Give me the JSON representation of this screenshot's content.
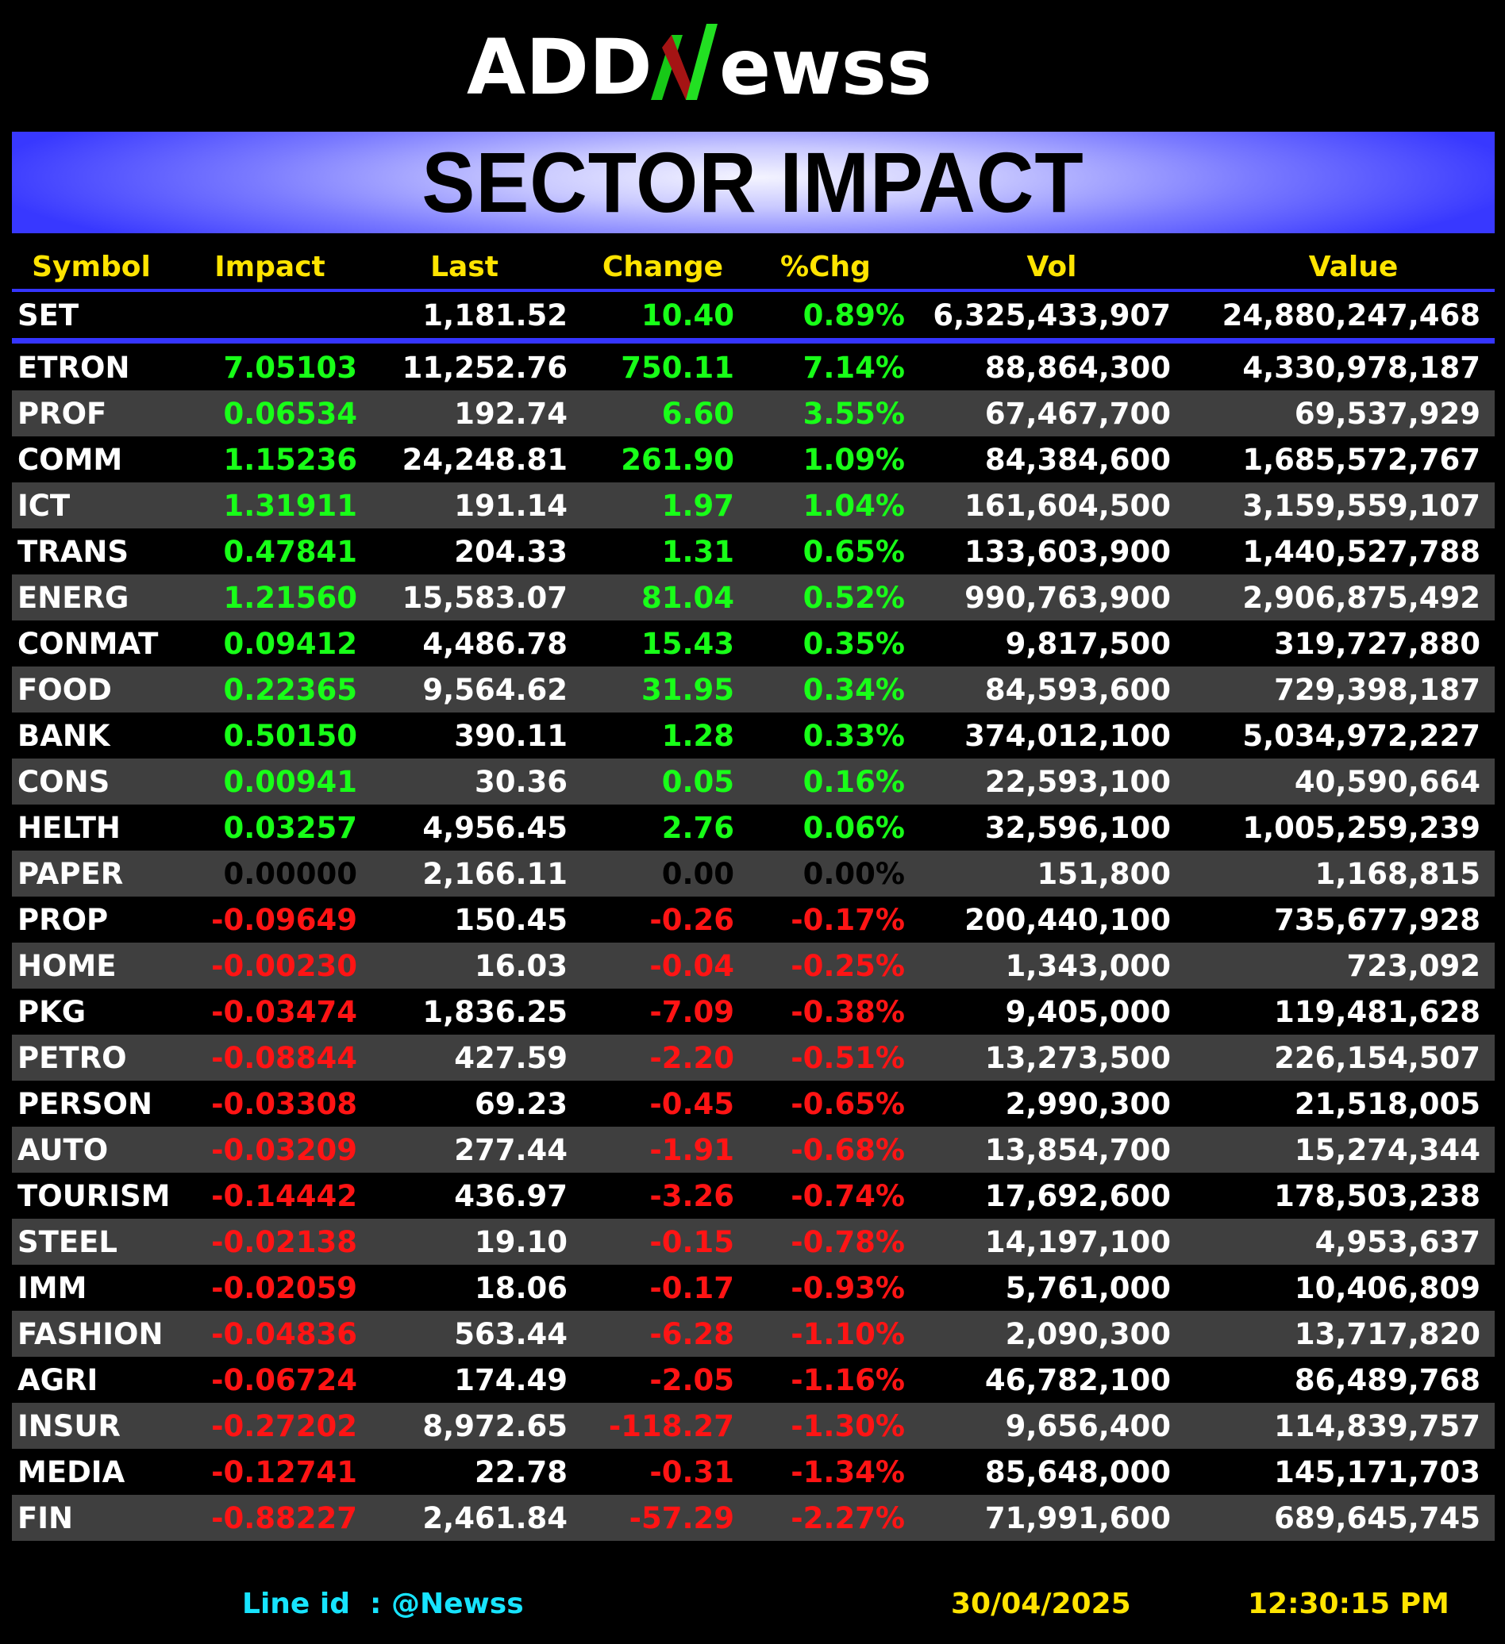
{
  "logo": {
    "text": "ADDNewss",
    "part1": "ADD",
    "part2": "N",
    "part3": "ewss"
  },
  "banner": {
    "title": "SECTOR IMPACT"
  },
  "columns": [
    "Symbol",
    "Impact",
    "Last",
    "Change",
    "%Chg",
    "Vol",
    "Value"
  ],
  "index_row": {
    "symbol": "SET",
    "impact": "",
    "last": "1,181.52",
    "change": "10.40",
    "pct": "0.89%",
    "vol": "6,325,433,907",
    "value": "24,880,247,468"
  },
  "rows": [
    {
      "symbol": "ETRON",
      "impact": "7.05103",
      "last": "11,252.76",
      "change": "750.11",
      "pct": "7.14%",
      "vol": "88,864,300",
      "value": "4,330,978,187"
    },
    {
      "symbol": "PROF",
      "impact": "0.06534",
      "last": "192.74",
      "change": "6.60",
      "pct": "3.55%",
      "vol": "67,467,700",
      "value": "69,537,929"
    },
    {
      "symbol": "COMM",
      "impact": "1.15236",
      "last": "24,248.81",
      "change": "261.90",
      "pct": "1.09%",
      "vol": "84,384,600",
      "value": "1,685,572,767"
    },
    {
      "symbol": "ICT",
      "impact": "1.31911",
      "last": "191.14",
      "change": "1.97",
      "pct": "1.04%",
      "vol": "161,604,500",
      "value": "3,159,559,107"
    },
    {
      "symbol": "TRANS",
      "impact": "0.47841",
      "last": "204.33",
      "change": "1.31",
      "pct": "0.65%",
      "vol": "133,603,900",
      "value": "1,440,527,788"
    },
    {
      "symbol": "ENERG",
      "impact": "1.21560",
      "last": "15,583.07",
      "change": "81.04",
      "pct": "0.52%",
      "vol": "990,763,900",
      "value": "2,906,875,492"
    },
    {
      "symbol": "CONMAT",
      "impact": "0.09412",
      "last": "4,486.78",
      "change": "15.43",
      "pct": "0.35%",
      "vol": "9,817,500",
      "value": "319,727,880"
    },
    {
      "symbol": "FOOD",
      "impact": "0.22365",
      "last": "9,564.62",
      "change": "31.95",
      "pct": "0.34%",
      "vol": "84,593,600",
      "value": "729,398,187"
    },
    {
      "symbol": "BANK",
      "impact": "0.50150",
      "last": "390.11",
      "change": "1.28",
      "pct": "0.33%",
      "vol": "374,012,100",
      "value": "5,034,972,227"
    },
    {
      "symbol": "CONS",
      "impact": "0.00941",
      "last": "30.36",
      "change": "0.05",
      "pct": "0.16%",
      "vol": "22,593,100",
      "value": "40,590,664"
    },
    {
      "symbol": "HELTH",
      "impact": "0.03257",
      "last": "4,956.45",
      "change": "2.76",
      "pct": "0.06%",
      "vol": "32,596,100",
      "value": "1,005,259,239"
    },
    {
      "symbol": "PAPER",
      "impact": "0.00000",
      "last": "2,166.11",
      "change": "0.00",
      "pct": "0.00%",
      "vol": "151,800",
      "value": "1,168,815"
    },
    {
      "symbol": "PROP",
      "impact": "-0.09649",
      "last": "150.45",
      "change": "-0.26",
      "pct": "-0.17%",
      "vol": "200,440,100",
      "value": "735,677,928"
    },
    {
      "symbol": "HOME",
      "impact": "-0.00230",
      "last": "16.03",
      "change": "-0.04",
      "pct": "-0.25%",
      "vol": "1,343,000",
      "value": "723,092"
    },
    {
      "symbol": "PKG",
      "impact": "-0.03474",
      "last": "1,836.25",
      "change": "-7.09",
      "pct": "-0.38%",
      "vol": "9,405,000",
      "value": "119,481,628"
    },
    {
      "symbol": "PETRO",
      "impact": "-0.08844",
      "last": "427.59",
      "change": "-2.20",
      "pct": "-0.51%",
      "vol": "13,273,500",
      "value": "226,154,507"
    },
    {
      "symbol": "PERSON",
      "impact": "-0.03308",
      "last": "69.23",
      "change": "-0.45",
      "pct": "-0.65%",
      "vol": "2,990,300",
      "value": "21,518,005"
    },
    {
      "symbol": "AUTO",
      "impact": "-0.03209",
      "last": "277.44",
      "change": "-1.91",
      "pct": "-0.68%",
      "vol": "13,854,700",
      "value": "15,274,344"
    },
    {
      "symbol": "TOURISM",
      "impact": "-0.14442",
      "last": "436.97",
      "change": "-3.26",
      "pct": "-0.74%",
      "vol": "17,692,600",
      "value": "178,503,238"
    },
    {
      "symbol": "STEEL",
      "impact": "-0.02138",
      "last": "19.10",
      "change": "-0.15",
      "pct": "-0.78%",
      "vol": "14,197,100",
      "value": "4,953,637"
    },
    {
      "symbol": "IMM",
      "impact": "-0.02059",
      "last": "18.06",
      "change": "-0.17",
      "pct": "-0.93%",
      "vol": "5,761,000",
      "value": "10,406,809"
    },
    {
      "symbol": "FASHION",
      "impact": "-0.04836",
      "last": "563.44",
      "change": "-6.28",
      "pct": "-1.10%",
      "vol": "2,090,300",
      "value": "13,717,820"
    },
    {
      "symbol": "AGRI",
      "impact": "-0.06724",
      "last": "174.49",
      "change": "-2.05",
      "pct": "-1.16%",
      "vol": "46,782,100",
      "value": "86,489,768"
    },
    {
      "symbol": "INSUR",
      "impact": "-0.27202",
      "last": "8,972.65",
      "change": "-118.27",
      "pct": "-1.30%",
      "vol": "9,656,400",
      "value": "114,839,757"
    },
    {
      "symbol": "MEDIA",
      "impact": "-0.12741",
      "last": "22.78",
      "change": "-0.31",
      "pct": "-1.34%",
      "vol": "85,648,000",
      "value": "145,171,703"
    },
    {
      "symbol": "FIN",
      "impact": "-0.88227",
      "last": "2,461.84",
      "change": "-57.29",
      "pct": "-2.27%",
      "vol": "71,991,600",
      "value": "689,645,745"
    }
  ],
  "footer": {
    "line_id": "Line id  : @Newss",
    "date": "30/04/2025",
    "time": "12:30:15 PM"
  },
  "colors": {
    "positive": "#18ff18",
    "negative": "#ff1414",
    "zero": "#000000",
    "header": "#ffe400",
    "banner": "#3838ff",
    "divider": "#3535ff",
    "line_id": "#17e4ff"
  }
}
